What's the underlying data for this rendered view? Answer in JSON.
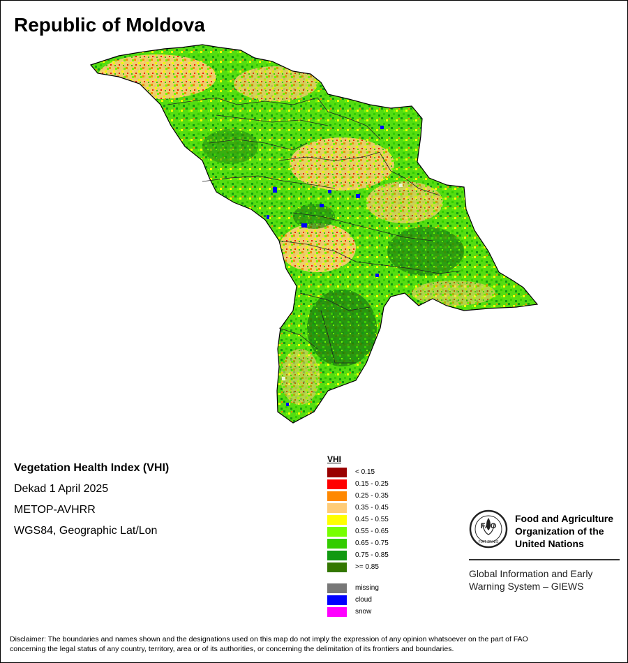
{
  "map": {
    "title": "Republic of Moldova"
  },
  "info": {
    "product": "Vegetation Health Index (VHI)",
    "period": "Dekad 1 April 2025",
    "sensor": "METOP-AVHRR",
    "projection": "WGS84, Geographic Lat/Lon"
  },
  "legend": {
    "title": "VHI",
    "classes": [
      {
        "label": "< 0.15",
        "color": "#990000"
      },
      {
        "label": "0.15 - 0.25",
        "color": "#ff0000"
      },
      {
        "label": "0.25 - 0.35",
        "color": "#ff8800"
      },
      {
        "label": "0.35 - 0.45",
        "color": "#ffcc77"
      },
      {
        "label": "0.45 - 0.55",
        "color": "#ffff00"
      },
      {
        "label": "0.55 - 0.65",
        "color": "#77ff00"
      },
      {
        "label": "0.65 - 0.75",
        "color": "#33cc00"
      },
      {
        "label": "0.75 - 0.85",
        "color": "#119911"
      },
      {
        "label": ">= 0.85",
        "color": "#337700"
      }
    ],
    "special": [
      {
        "label": "missing",
        "color": "#777777"
      },
      {
        "label": "cloud",
        "color": "#0000ff"
      },
      {
        "label": "snow",
        "color": "#ff00ff"
      }
    ]
  },
  "organization": {
    "name_line1": "Food and Agriculture",
    "name_line2": "Organization of the",
    "name_line3": "United Nations",
    "logo_text": "FAO",
    "logo_motto": "FIAT PANIS",
    "system_line1": "Global Information and Early",
    "system_line2": "Warning System – GIEWS"
  },
  "disclaimer": {
    "line1": "Disclaimer: The boundaries and names shown and the designations used on this map do not imply the expression of any opinion whatsoever on the part of FAO",
    "line2": "concerning the legal status of any country, territory, area or of its authorities, or concerning the delimitation of its frontiers and boundaries."
  }
}
